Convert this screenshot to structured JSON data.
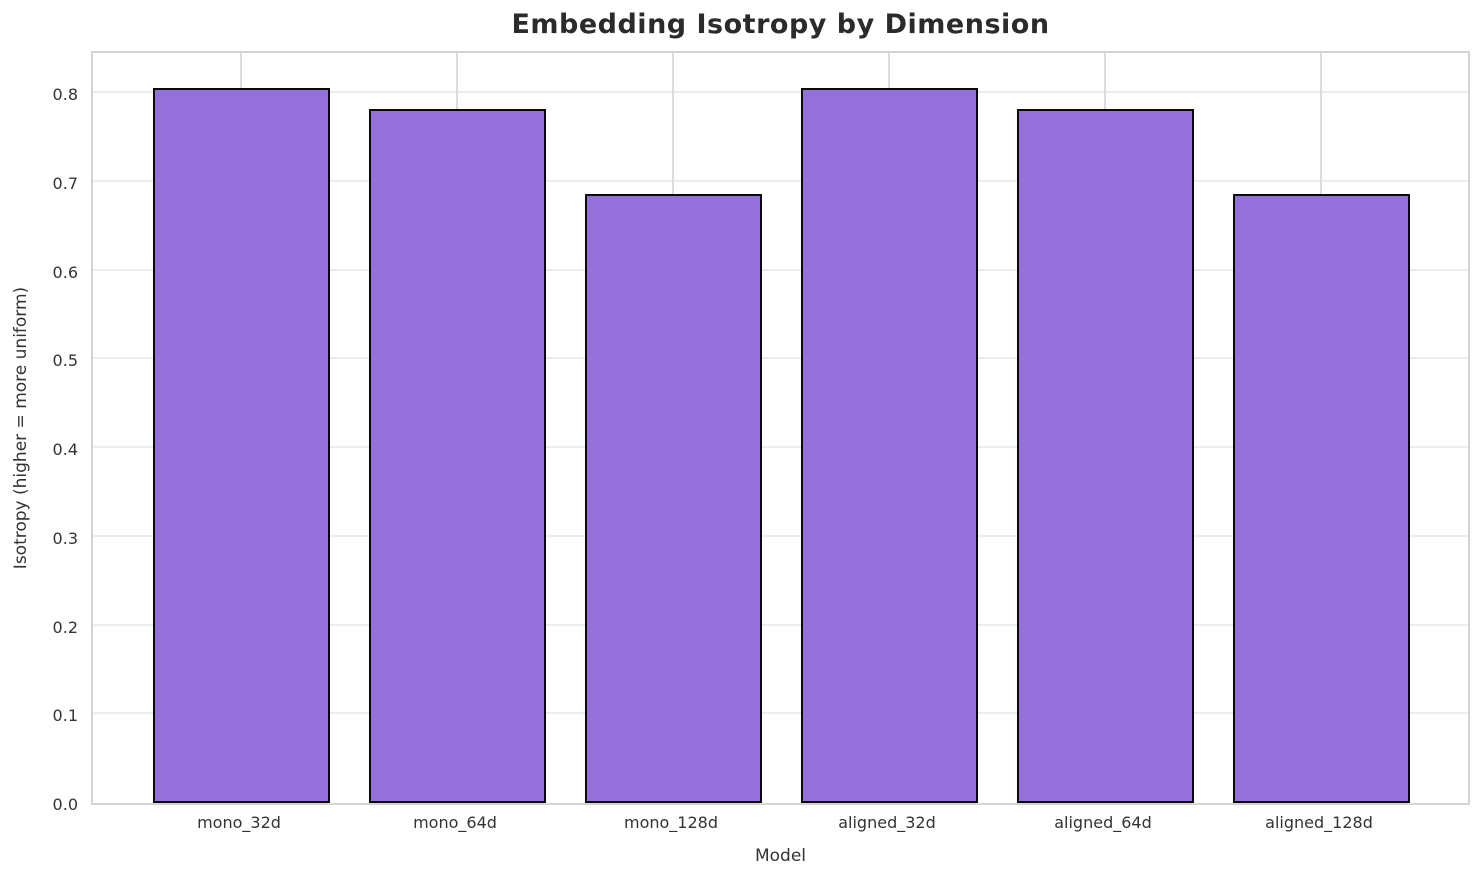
{
  "chart_data": {
    "type": "bar",
    "title": "Embedding Isotropy by Dimension",
    "xlabel": "Model",
    "ylabel": "Isotropy (higher = more uniform)",
    "categories": [
      "mono_32d",
      "mono_64d",
      "mono_128d",
      "aligned_32d",
      "aligned_64d",
      "aligned_128d"
    ],
    "values": [
      0.806,
      0.782,
      0.687,
      0.806,
      0.782,
      0.687
    ],
    "ylim": [
      0.0,
      0.85
    ],
    "yticks": [
      0.0,
      0.1,
      0.2,
      0.3,
      0.4,
      0.5,
      0.6,
      0.7,
      0.8
    ],
    "ytick_labels": [
      "0.0",
      "0.1",
      "0.2",
      "0.3",
      "0.4",
      "0.5",
      "0.6",
      "0.7",
      "0.8"
    ],
    "grid": true,
    "legend": "none",
    "colors": {
      "bar_fill": "#9370DB",
      "bar_edge": "#0a0a0a",
      "grid_horizontal": "#ececec",
      "grid_vertical": "#dcdcdc",
      "spine": "#d4d4d4",
      "title_text": "#2b2b2b",
      "tick_text": "#333333"
    }
  }
}
